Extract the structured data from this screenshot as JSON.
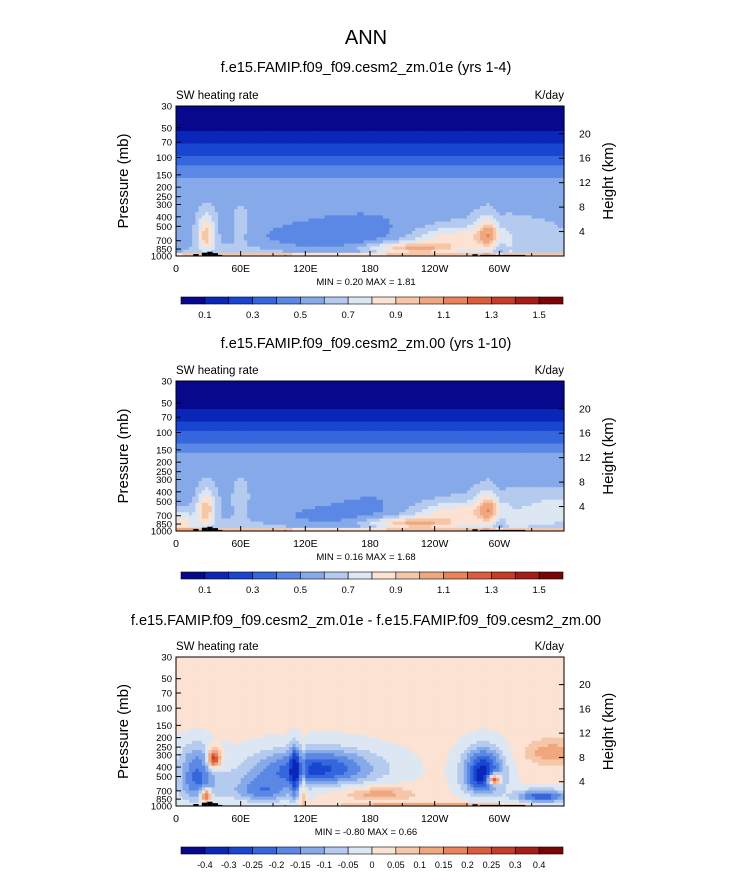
{
  "figure": {
    "title": "ANN"
  },
  "colors": {
    "pos_scale": [
      "#08088c",
      "#0a27b8",
      "#1846d0",
      "#3566dd",
      "#5a88e4",
      "#86aae9",
      "#b4cbef",
      "#dde7f3",
      "#fbe2d2",
      "#f6c6a9",
      "#f0a77f",
      "#e9835a",
      "#dc5d3b",
      "#c63c25",
      "#a51d16",
      "#7a0505"
    ],
    "diff_scale": [
      "#08088c",
      "#0a27b8",
      "#1846d0",
      "#3566dd",
      "#5a88e4",
      "#86aae9",
      "#b4cbef",
      "#dde7f3",
      "#fbe2d2",
      "#f6c6a9",
      "#f0a77f",
      "#e9835a",
      "#dc5d3b",
      "#c63c25",
      "#a51d16",
      "#7a0505"
    ],
    "land": "#000000"
  },
  "chart_data": [
    {
      "type": "heatmap",
      "title": "f.e15.FAMIP.f09_f09.cesm2_zm.01e (yrs 1-4)",
      "left_label": "SW heating rate",
      "right_label": "K/day",
      "ylabel": "Pressure (mb)",
      "y2label": "Height (km)",
      "x_ticks": [
        "0",
        "60E",
        "120E",
        "180",
        "120W",
        "60W"
      ],
      "x_tick_values": [
        0,
        60,
        120,
        180,
        240,
        300
      ],
      "xlim": [
        0,
        360
      ],
      "y_ticks": [
        "30",
        "50",
        "70",
        "100",
        "150",
        "200",
        "250",
        "300",
        "400",
        "500",
        "700",
        "850",
        "1000"
      ],
      "y_tick_values": [
        30,
        50,
        70,
        100,
        150,
        200,
        250,
        300,
        400,
        500,
        700,
        850,
        1000
      ],
      "ylim": [
        30,
        1000
      ],
      "y2_ticks": [
        "20",
        "16",
        "12",
        "8",
        "4"
      ],
      "y2_tick_values": [
        20,
        16,
        12,
        8,
        4
      ],
      "stats": "MIN =  0.20  MAX =  1.81",
      "min": 0.2,
      "max": 1.81,
      "colorbar_labels": [
        "0.1",
        "0.3",
        "0.5",
        "0.7",
        "0.9",
        "1.1",
        "1.3",
        "1.5"
      ],
      "colorbar_levels": [
        0.0,
        0.1,
        0.2,
        0.3,
        0.4,
        0.5,
        0.6,
        0.7,
        0.8,
        0.9,
        1.0,
        1.1,
        1.2,
        1.3,
        1.4,
        1.5,
        1.6
      ],
      "variant": 0
    },
    {
      "type": "heatmap",
      "title": "f.e15.FAMIP.f09_f09.cesm2_zm.00 (yrs 1-10)",
      "left_label": "SW heating rate",
      "right_label": "K/day",
      "ylabel": "Pressure (mb)",
      "y2label": "Height (km)",
      "x_ticks": [
        "0",
        "60E",
        "120E",
        "180",
        "120W",
        "60W"
      ],
      "x_tick_values": [
        0,
        60,
        120,
        180,
        240,
        300
      ],
      "xlim": [
        0,
        360
      ],
      "y_ticks": [
        "30",
        "50",
        "70",
        "100",
        "150",
        "200",
        "250",
        "300",
        "400",
        "500",
        "700",
        "850",
        "1000"
      ],
      "y_tick_values": [
        30,
        50,
        70,
        100,
        150,
        200,
        250,
        300,
        400,
        500,
        700,
        850,
        1000
      ],
      "ylim": [
        30,
        1000
      ],
      "y2_ticks": [
        "20",
        "16",
        "12",
        "8",
        "4"
      ],
      "y2_tick_values": [
        20,
        16,
        12,
        8,
        4
      ],
      "stats": "MIN =  0.16  MAX =  1.68",
      "min": 0.16,
      "max": 1.68,
      "colorbar_labels": [
        "0.1",
        "0.3",
        "0.5",
        "0.7",
        "0.9",
        "1.1",
        "1.3",
        "1.5"
      ],
      "colorbar_levels": [
        0.0,
        0.1,
        0.2,
        0.3,
        0.4,
        0.5,
        0.6,
        0.7,
        0.8,
        0.9,
        1.0,
        1.1,
        1.2,
        1.3,
        1.4,
        1.5,
        1.6
      ],
      "variant": 1
    },
    {
      "type": "heatmap",
      "title": "f.e15.FAMIP.f09_f09.cesm2_zm.01e - f.e15.FAMIP.f09_f09.cesm2_zm.00",
      "left_label": "SW heating rate",
      "right_label": "K/day",
      "ylabel": "Pressure (mb)",
      "y2label": "Height (km)",
      "x_ticks": [
        "0",
        "60E",
        "120E",
        "180",
        "120W",
        "60W"
      ],
      "x_tick_values": [
        0,
        60,
        120,
        180,
        240,
        300
      ],
      "xlim": [
        0,
        360
      ],
      "y_ticks": [
        "30",
        "50",
        "70",
        "100",
        "150",
        "200",
        "250",
        "300",
        "400",
        "500",
        "700",
        "850",
        "1000"
      ],
      "y_tick_values": [
        30,
        50,
        70,
        100,
        150,
        200,
        250,
        300,
        400,
        500,
        700,
        850,
        1000
      ],
      "ylim": [
        30,
        1000
      ],
      "y2_ticks": [
        "20",
        "16",
        "12",
        "8",
        "4"
      ],
      "y2_tick_values": [
        20,
        16,
        12,
        8,
        4
      ],
      "stats": "MIN = -0.80  MAX =  0.66",
      "min": -0.8,
      "max": 0.66,
      "colorbar_labels": [
        "-0.4",
        "-0.3",
        "-0.25",
        "-0.2",
        "-0.15",
        "-0.1",
        "-0.05",
        "0",
        "0.05",
        "0.1",
        "0.15",
        "0.2",
        "0.25",
        "0.3",
        "0.4"
      ],
      "colorbar_levels": [
        -0.5,
        -0.4,
        -0.3,
        -0.25,
        -0.2,
        -0.15,
        -0.1,
        -0.05,
        0,
        0.05,
        0.1,
        0.15,
        0.2,
        0.25,
        0.3,
        0.4,
        0.5
      ],
      "variant": 2
    }
  ]
}
